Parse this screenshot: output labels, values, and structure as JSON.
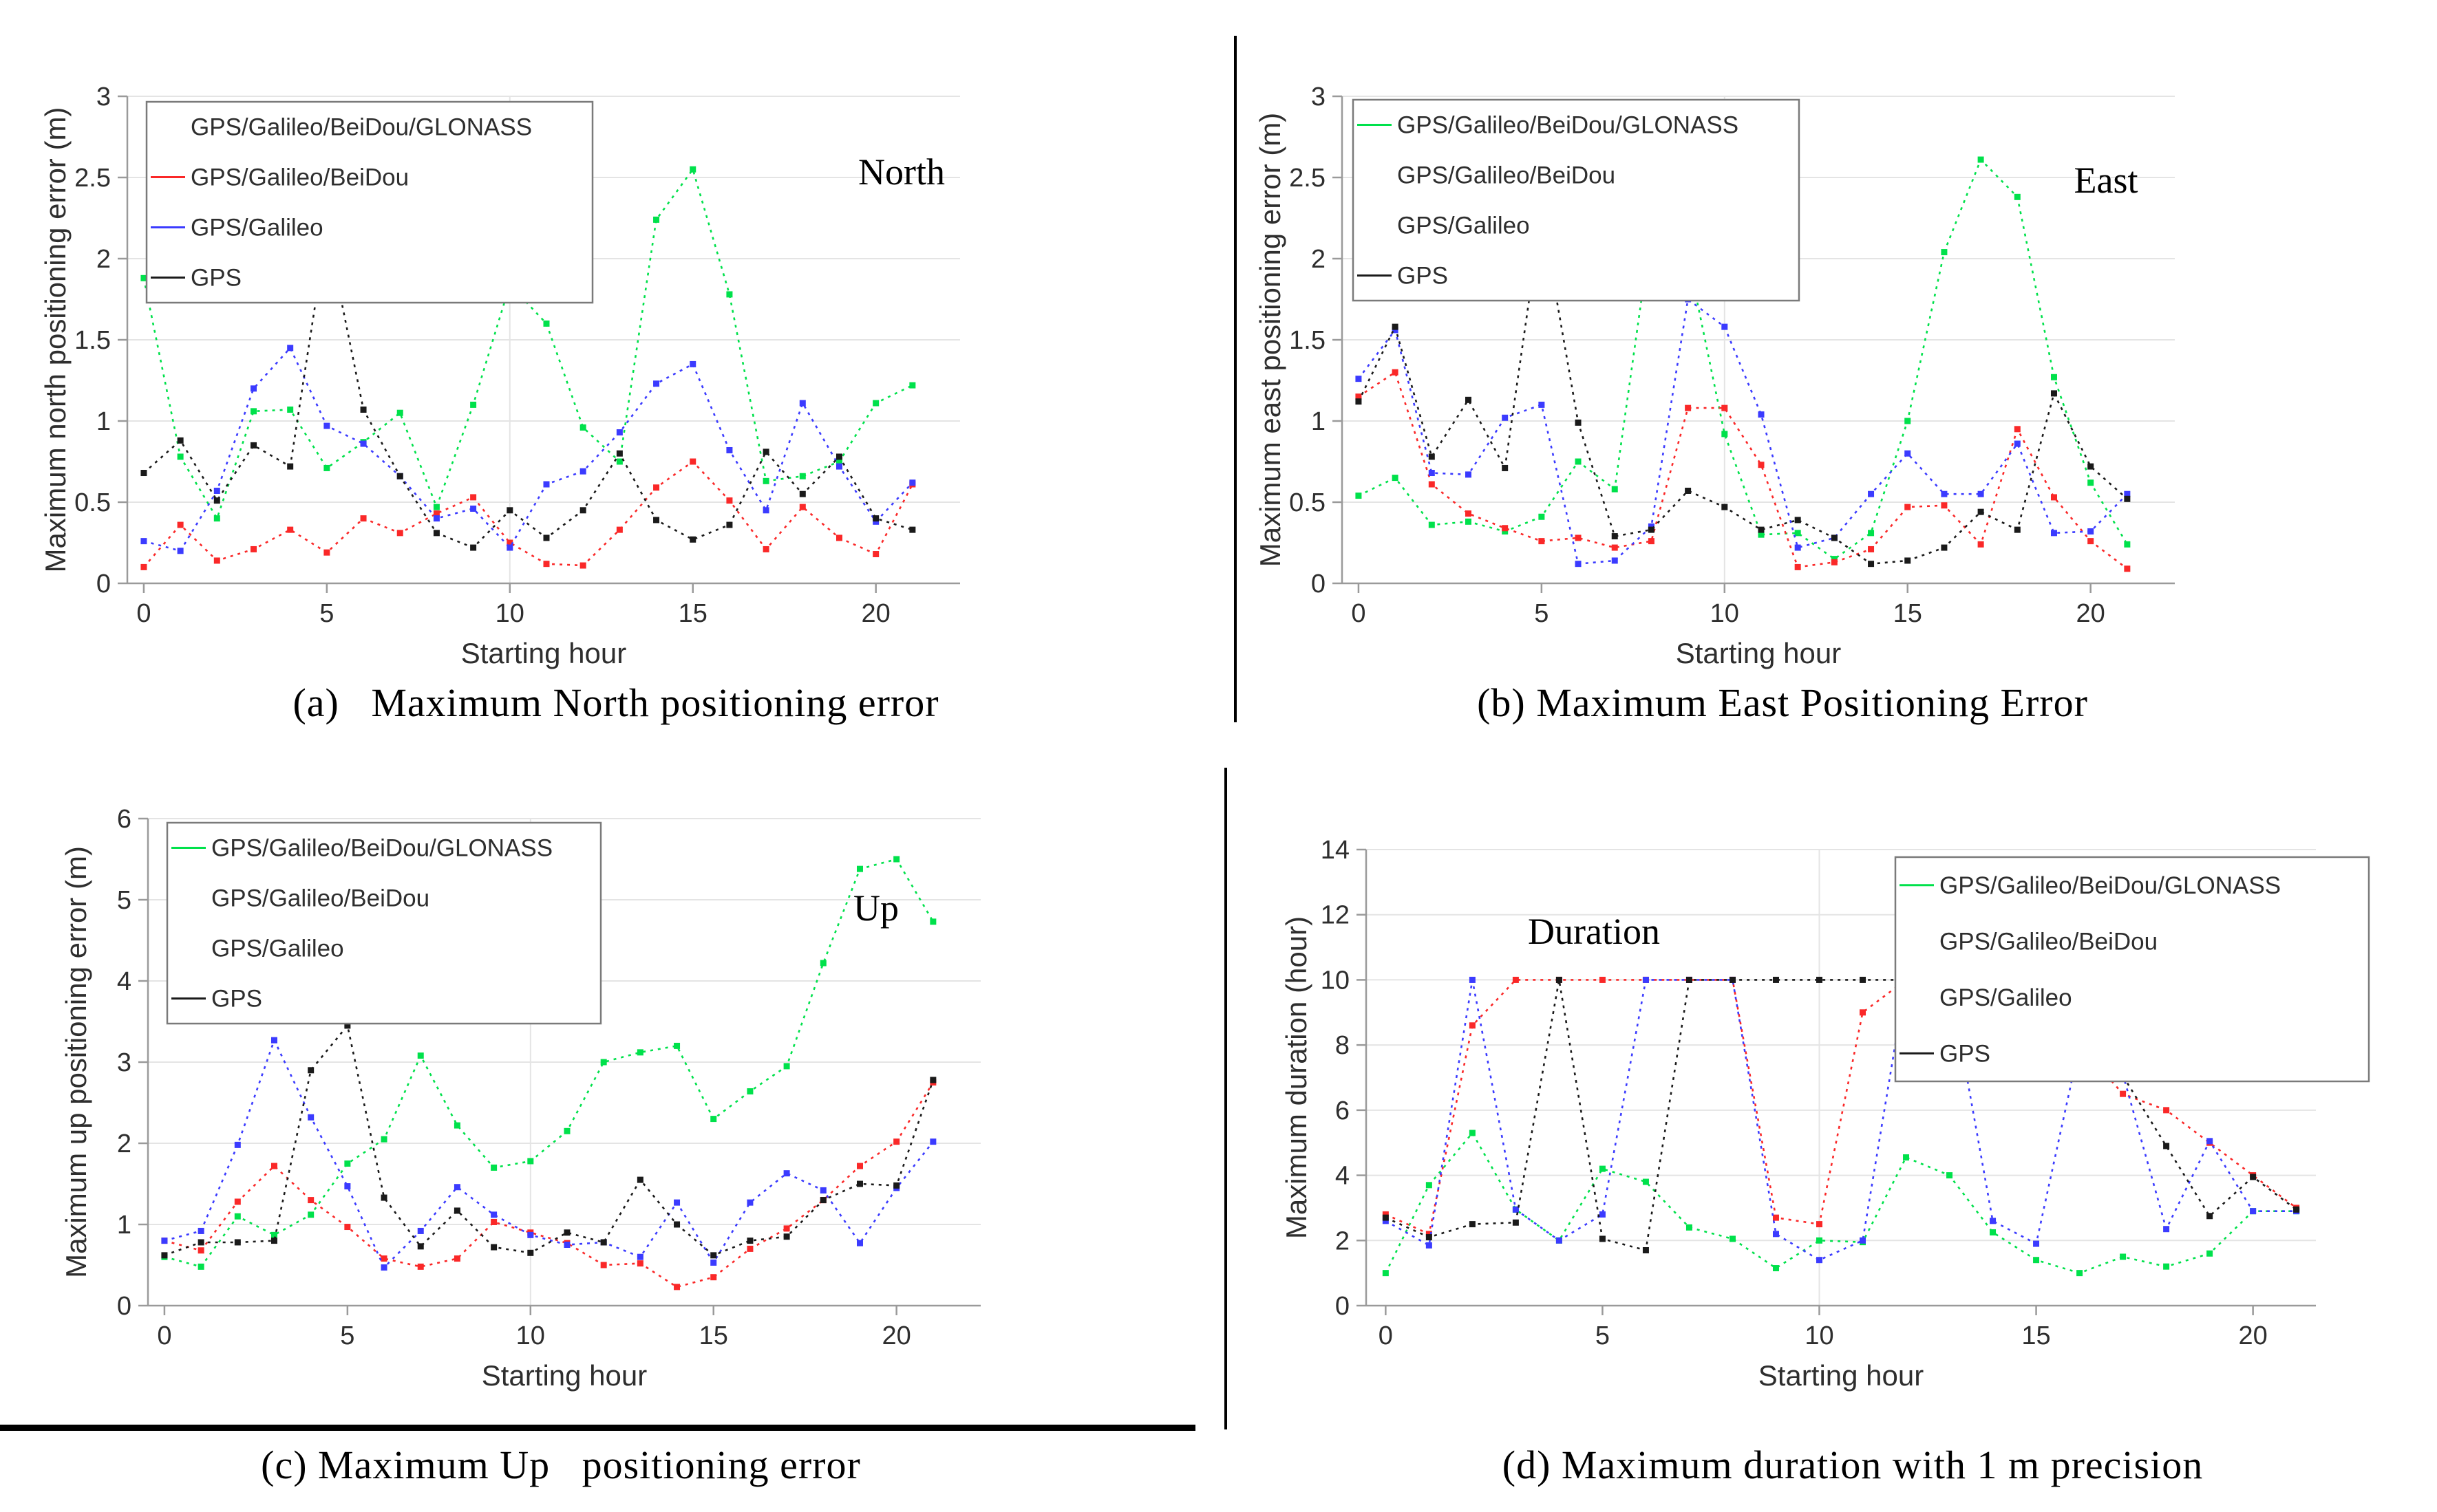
{
  "colors": {
    "glonass": "#00e14b",
    "beidou": "#fa2828",
    "galileo": "#3b3bff",
    "gps": "#1a1a1a",
    "grid": "#e4e4e4",
    "axis": "#9a9a9a",
    "tick_text": "#2e2e2e",
    "legend_border": "#7a7a7a",
    "caption_text": "#000000"
  },
  "legend_labels": [
    "GPS/Galileo/BeiDou/GLONASS",
    "GPS/Galileo/BeiDou",
    "GPS/Galileo",
    "GPS"
  ],
  "xlabel": "Starting hour",
  "hours": [
    0,
    1,
    2,
    3,
    4,
    5,
    6,
    7,
    8,
    9,
    10,
    11,
    12,
    13,
    14,
    15,
    16,
    17,
    18,
    19,
    20,
    21
  ],
  "chart_data": [
    {
      "id": "a",
      "type": "line",
      "panel_title": "North",
      "caption": "(a)   Maximum North positioning error",
      "ylabel": "Maximum north positioning error (m)",
      "xlabel": "Starting hour",
      "ylim": [
        0,
        3
      ],
      "ytick_values": [
        0,
        0.5,
        1,
        1.5,
        2,
        2.5,
        3
      ],
      "ytick_labels": [
        "0",
        "0.5",
        "1",
        "1.5",
        "2",
        "2.5",
        "3"
      ],
      "xtick_values": [
        0,
        5,
        10,
        15,
        20
      ],
      "xlim": [
        -0.45,
        22.3
      ],
      "vgrid": [
        10
      ],
      "legend_position": "top-left",
      "legend_swatches": [
        null,
        "beidou",
        "galileo",
        "gps"
      ],
      "series": [
        {
          "name": "GPS/Galileo/BeiDou/GLONASS",
          "color_key": "glonass",
          "values": [
            1.88,
            0.78,
            0.4,
            1.06,
            1.07,
            0.71,
            0.87,
            1.05,
            0.47,
            1.1,
            1.84,
            1.6,
            0.96,
            0.75,
            2.24,
            2.55,
            1.78,
            0.63,
            0.66,
            0.75,
            1.11,
            1.22
          ]
        },
        {
          "name": "GPS/Galileo/BeiDou",
          "color_key": "beidou",
          "values": [
            0.1,
            0.36,
            0.14,
            0.21,
            0.33,
            0.19,
            0.4,
            0.31,
            0.43,
            0.53,
            0.25,
            0.12,
            0.11,
            0.33,
            0.59,
            0.75,
            0.51,
            0.21,
            0.47,
            0.28,
            0.18,
            0.61
          ]
        },
        {
          "name": "GPS/Galileo",
          "color_key": "galileo",
          "values": [
            0.26,
            0.2,
            0.57,
            1.2,
            1.45,
            0.97,
            0.86,
            0.66,
            0.4,
            0.46,
            0.22,
            0.61,
            0.69,
            0.93,
            1.23,
            1.35,
            0.82,
            0.45,
            1.11,
            0.72,
            0.38,
            0.62
          ]
        },
        {
          "name": "GPS",
          "color_key": "gps",
          "values": [
            0.68,
            0.88,
            0.51,
            0.85,
            0.72,
            2.18,
            1.07,
            0.66,
            0.31,
            0.22,
            0.45,
            0.28,
            0.45,
            0.8,
            0.39,
            0.27,
            0.36,
            0.81,
            0.55,
            0.78,
            0.4,
            0.33
          ]
        }
      ]
    },
    {
      "id": "b",
      "type": "line",
      "panel_title": "East",
      "caption": "(b) Maximum East Positioning Error",
      "ylabel": "Maximum east positioning error (m)",
      "xlabel": "Starting hour",
      "ylim": [
        0,
        3
      ],
      "ytick_values": [
        0,
        0.5,
        1,
        1.5,
        2,
        2.5,
        3
      ],
      "ytick_labels": [
        "0",
        "0.5",
        "1",
        "1.5",
        "2",
        "2.5",
        "3"
      ],
      "xtick_values": [
        0,
        5,
        10,
        15,
        20
      ],
      "xlim": [
        -0.45,
        22.3
      ],
      "vgrid": [
        10
      ],
      "legend_position": "top-left",
      "legend_swatches": [
        "glonass",
        null,
        null,
        "gps"
      ],
      "series": [
        {
          "name": "GPS/Galileo/BeiDou/GLONASS",
          "color_key": "glonass",
          "values": [
            0.54,
            0.65,
            0.36,
            0.38,
            0.32,
            0.41,
            0.75,
            0.58,
            2.18,
            2.01,
            0.92,
            0.3,
            0.31,
            0.15,
            0.31,
            1.0,
            2.04,
            2.61,
            2.38,
            1.27,
            0.62,
            0.24
          ]
        },
        {
          "name": "GPS/Galileo/BeiDou",
          "color_key": "beidou",
          "values": [
            1.15,
            1.3,
            0.61,
            0.43,
            0.34,
            0.26,
            0.28,
            0.22,
            0.26,
            1.08,
            1.08,
            0.73,
            0.1,
            0.13,
            0.21,
            0.47,
            0.48,
            0.24,
            0.95,
            0.53,
            0.26,
            0.09
          ]
        },
        {
          "name": "GPS/Galileo",
          "color_key": "galileo",
          "values": [
            1.26,
            1.56,
            0.68,
            0.67,
            1.02,
            1.1,
            0.12,
            0.14,
            0.35,
            1.75,
            1.58,
            1.04,
            0.22,
            0.28,
            0.55,
            0.8,
            0.55,
            0.55,
            0.86,
            0.31,
            0.32,
            0.55
          ]
        },
        {
          "name": "GPS",
          "color_key": "gps",
          "values": [
            1.12,
            1.58,
            0.78,
            1.13,
            0.71,
            2.28,
            0.99,
            0.29,
            0.33,
            0.57,
            0.47,
            0.33,
            0.39,
            0.28,
            0.12,
            0.14,
            0.22,
            0.44,
            0.33,
            1.17,
            0.72,
            0.52
          ]
        }
      ]
    },
    {
      "id": "c",
      "type": "line",
      "panel_title": "Up",
      "caption": "(c) Maximum Up   positioning error",
      "ylabel": "Maximum up positioning error (m)",
      "xlabel": "Starting hour",
      "ylim": [
        0,
        6
      ],
      "ytick_values": [
        0,
        1,
        2,
        3,
        4,
        5,
        6
      ],
      "ytick_labels": [
        "0",
        "1",
        "2",
        "3",
        "4",
        "5",
        "6"
      ],
      "xtick_values": [
        0,
        5,
        10,
        15,
        20
      ],
      "xlim": [
        -0.45,
        22.3
      ],
      "vgrid": [
        10
      ],
      "legend_position": "top-left",
      "legend_swatches": [
        "glonass",
        null,
        null,
        "gps"
      ],
      "series": [
        {
          "name": "GPS/Galileo/BeiDou/GLONASS",
          "color_key": "glonass",
          "values": [
            0.6,
            0.48,
            1.1,
            0.87,
            1.12,
            1.75,
            2.05,
            3.08,
            2.22,
            1.7,
            1.78,
            2.15,
            3.0,
            3.12,
            3.2,
            2.3,
            2.64,
            2.95,
            4.22,
            5.38,
            5.5,
            4.73
          ]
        },
        {
          "name": "GPS/Galileo/BeiDou",
          "color_key": "beidou",
          "values": [
            0.8,
            0.68,
            1.28,
            1.72,
            1.3,
            0.97,
            0.58,
            0.48,
            0.58,
            1.03,
            0.9,
            0.77,
            0.5,
            0.52,
            0.23,
            0.35,
            0.7,
            0.95,
            1.3,
            1.72,
            2.02,
            2.75
          ]
        },
        {
          "name": "GPS/Galileo",
          "color_key": "galileo",
          "values": [
            0.8,
            0.92,
            1.98,
            3.27,
            2.32,
            1.47,
            0.47,
            0.92,
            1.46,
            1.12,
            0.87,
            0.75,
            0.78,
            0.6,
            1.27,
            0.53,
            1.27,
            1.63,
            1.42,
            0.77,
            1.45,
            2.02
          ]
        },
        {
          "name": "GPS",
          "color_key": "gps",
          "values": [
            0.62,
            0.78,
            0.78,
            0.8,
            2.9,
            3.45,
            1.33,
            0.73,
            1.17,
            0.72,
            0.65,
            0.9,
            0.78,
            1.55,
            1.0,
            0.62,
            0.8,
            0.85,
            1.3,
            1.5,
            1.48,
            2.78
          ]
        }
      ]
    },
    {
      "id": "d",
      "type": "line",
      "panel_title": "Duration",
      "caption": "(d) Maximum duration with 1 m precision",
      "ylabel": "Maximum duration (hour)",
      "xlabel": "Starting hour",
      "ylim": [
        0,
        14
      ],
      "ytick_values": [
        0,
        2,
        4,
        6,
        8,
        10,
        12,
        14
      ],
      "ytick_labels": [
        "0",
        "2",
        "4",
        "6",
        "8",
        "10",
        "12",
        "14"
      ],
      "xtick_values": [
        0,
        5,
        10,
        15,
        20
      ],
      "xlim": [
        -0.45,
        21.45
      ],
      "vgrid": [
        10
      ],
      "legend_position": "top-right",
      "legend_swatches": [
        "glonass",
        null,
        null,
        "gps"
      ],
      "series": [
        {
          "name": "GPS/Galileo/BeiDou/GLONASS",
          "color_key": "glonass",
          "values": [
            1.0,
            3.7,
            5.3,
            2.95,
            2.0,
            4.2,
            3.8,
            2.4,
            2.05,
            1.15,
            2.0,
            1.95,
            4.55,
            4.0,
            2.25,
            1.4,
            1.0,
            1.5,
            1.2,
            1.6,
            2.9,
            2.9
          ]
        },
        {
          "name": "GPS/Galileo/BeiDou",
          "color_key": "beidou",
          "values": [
            2.8,
            2.2,
            8.6,
            10,
            10,
            10,
            10,
            10,
            10,
            2.7,
            2.5,
            9.0,
            10,
            10,
            10,
            9.0,
            8.0,
            6.5,
            6.0,
            5.0,
            4.0,
            3.0
          ]
        },
        {
          "name": "GPS/Galileo",
          "color_key": "galileo",
          "values": [
            2.6,
            1.85,
            10,
            2.95,
            2.0,
            2.8,
            10,
            10,
            10,
            2.2,
            1.4,
            2.0,
            10,
            10,
            2.6,
            1.9,
            8.0,
            7.1,
            2.35,
            5.05,
            2.9,
            2.9
          ]
        },
        {
          "name": "GPS",
          "color_key": "gps",
          "values": [
            2.7,
            2.1,
            2.5,
            2.55,
            10,
            2.05,
            1.7,
            10,
            10,
            10,
            10,
            10,
            10,
            10,
            10,
            10,
            10,
            7.05,
            4.9,
            2.75,
            3.95,
            2.95
          ]
        }
      ]
    }
  ]
}
